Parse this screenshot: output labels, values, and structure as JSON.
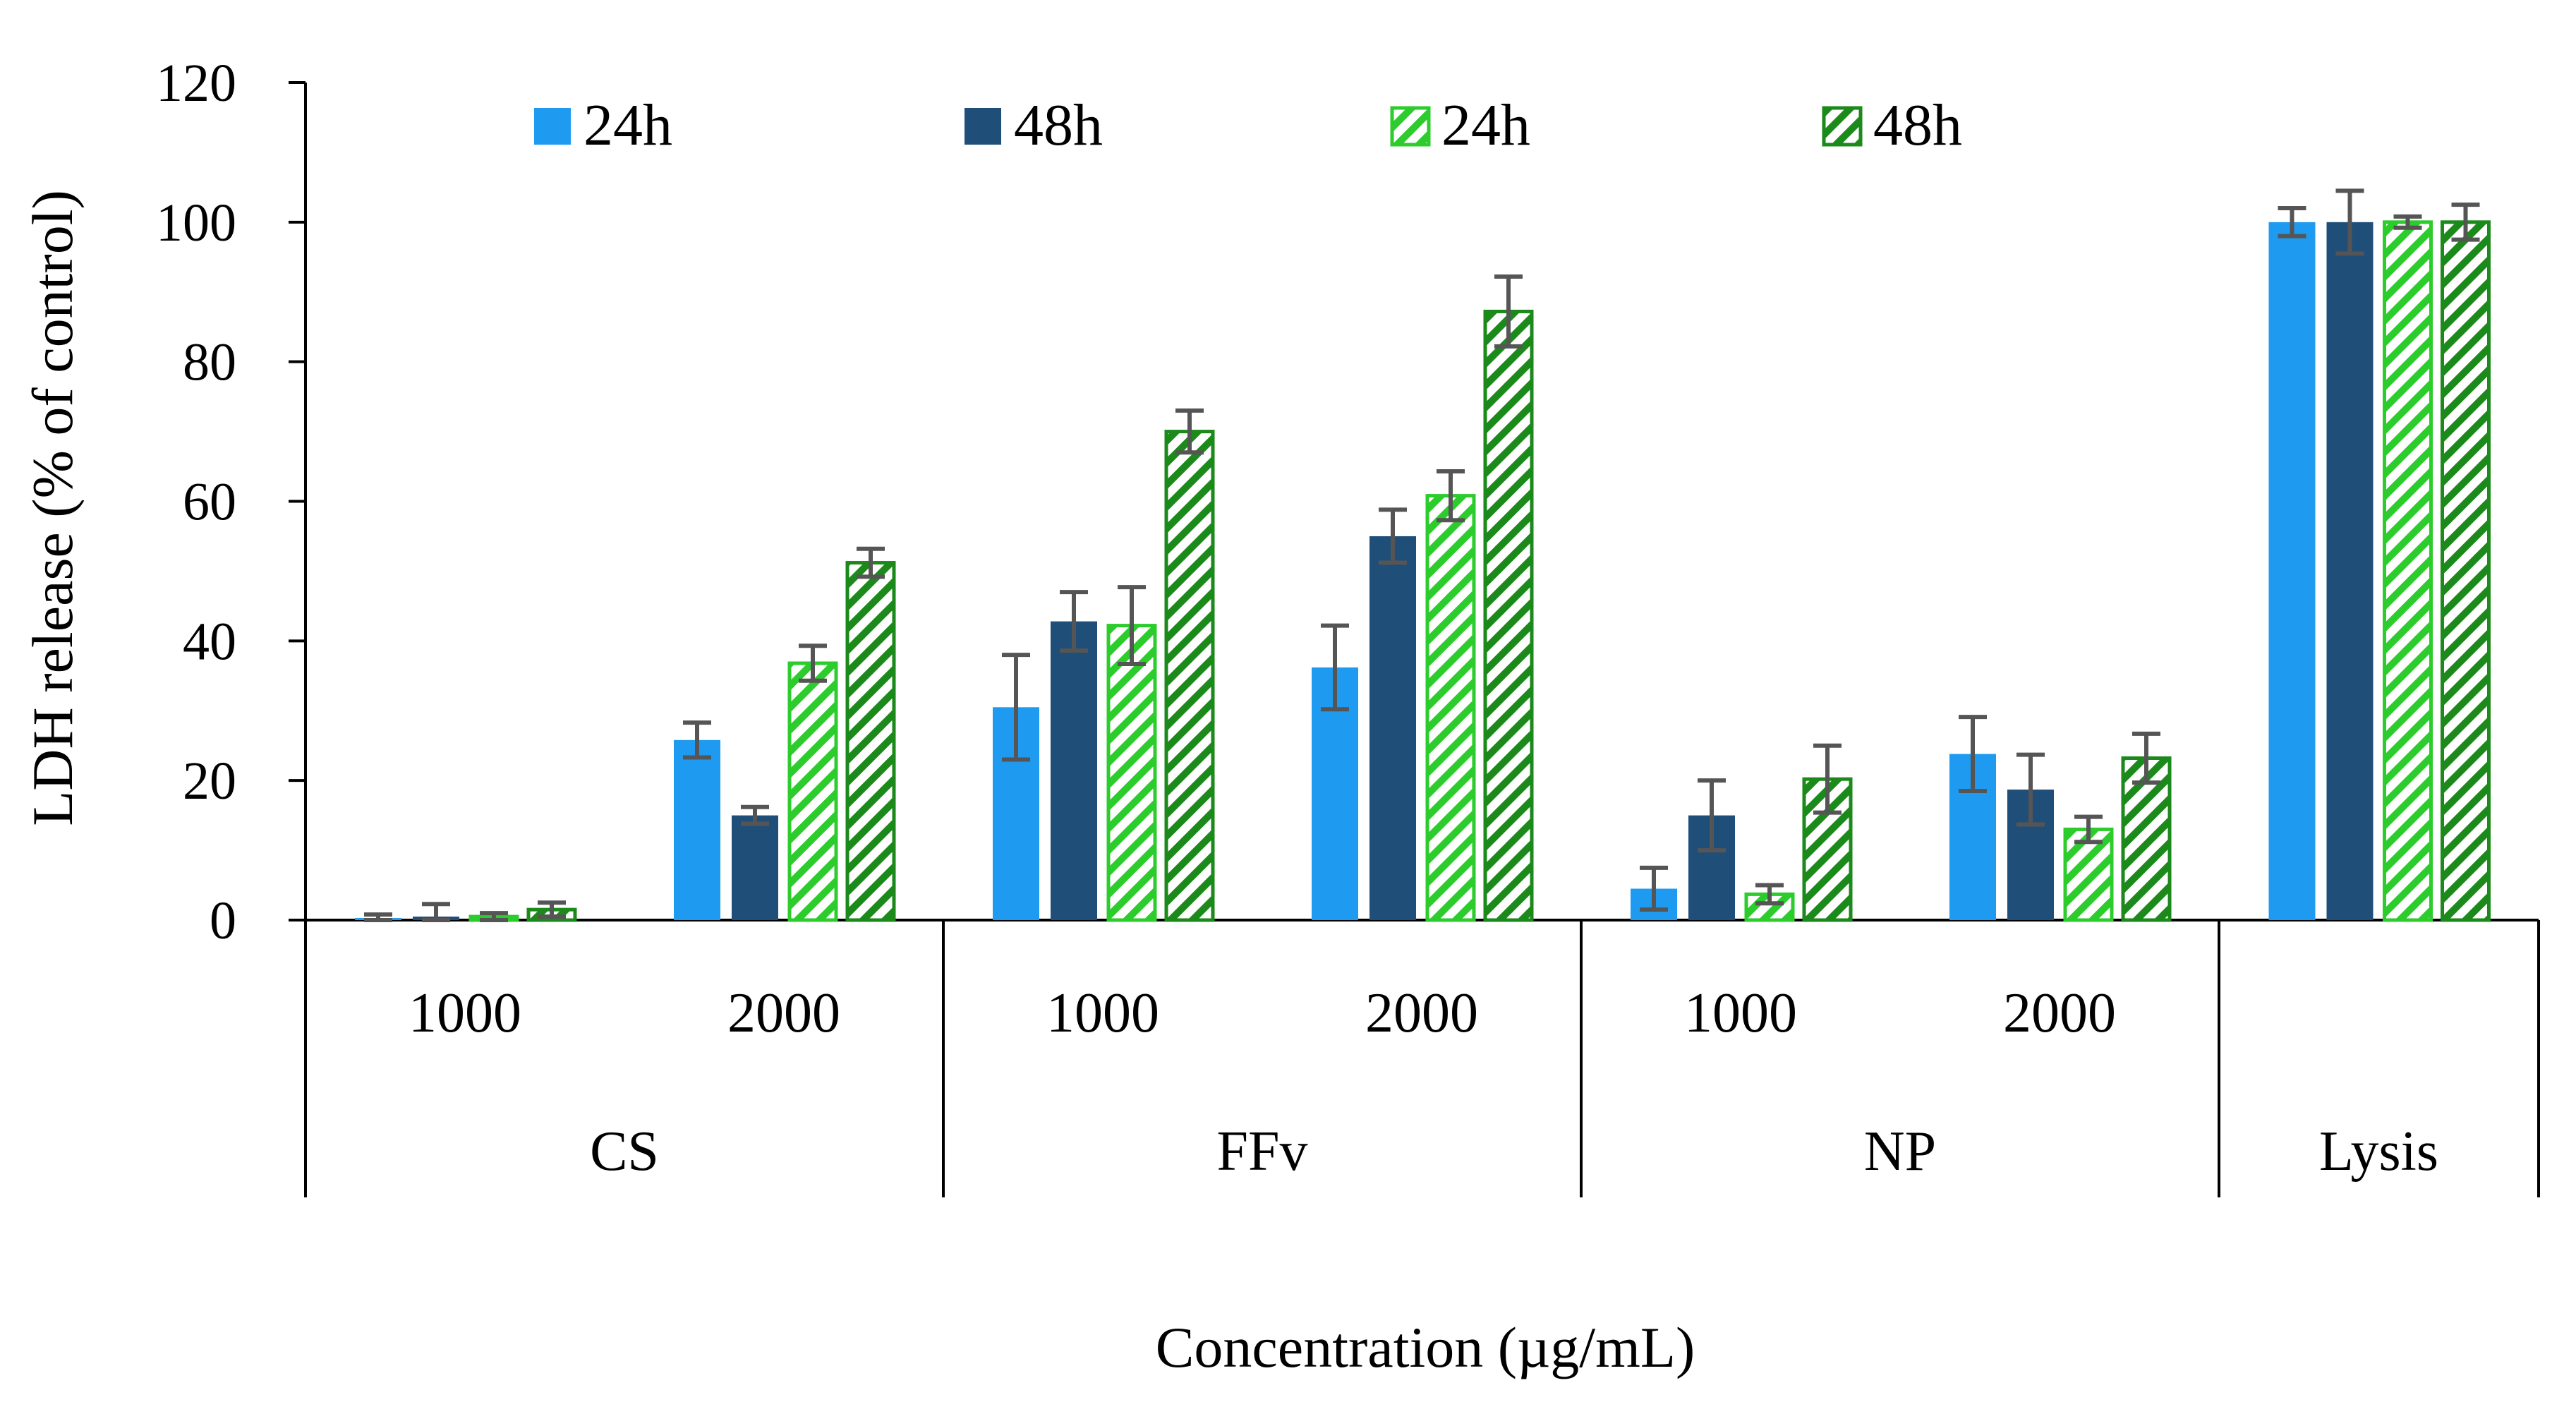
{
  "chart_data": {
    "type": "bar",
    "ylabel": "LDH release (% of control)",
    "xlabel": "Concentration (µg/mL)",
    "ylim": [
      0,
      120
    ],
    "yticks": [
      0,
      20,
      40,
      60,
      80,
      100,
      120
    ],
    "legend_position": "top",
    "groups": [
      {
        "label": "CS",
        "subgroups": [
          {
            "label": "1000",
            "values": [
              0.3,
              0.5,
              0.5,
              1.5
            ],
            "errors": [
              0.5,
              1.8,
              0.5,
              1.0
            ]
          },
          {
            "label": "2000",
            "values": [
              25.8,
              15.0,
              36.8,
              51.2
            ],
            "errors": [
              2.5,
              1.2,
              2.5,
              2.0
            ]
          }
        ]
      },
      {
        "label": "FFv",
        "subgroups": [
          {
            "label": "1000",
            "values": [
              30.5,
              42.8,
              42.2,
              70.0
            ],
            "errors": [
              7.5,
              4.2,
              5.5,
              3.0
            ]
          },
          {
            "label": "2000",
            "values": [
              36.2,
              55.0,
              60.8,
              87.2
            ],
            "errors": [
              6.0,
              3.8,
              3.5,
              5.0
            ]
          }
        ]
      },
      {
        "label": "NP",
        "subgroups": [
          {
            "label": "1000",
            "values": [
              4.5,
              15.0,
              3.7,
              20.2
            ],
            "errors": [
              3.0,
              5.0,
              1.3,
              4.8
            ]
          },
          {
            "label": "2000",
            "values": [
              23.8,
              18.7,
              13.0,
              23.2
            ],
            "errors": [
              5.3,
              5.0,
              1.8,
              3.5
            ]
          }
        ]
      },
      {
        "label": "Lysis",
        "subgroups": [
          {
            "label": "",
            "values": [
              100,
              100,
              100,
              100
            ],
            "errors": [
              2.0,
              4.5,
              0.8,
              2.5
            ]
          }
        ]
      }
    ],
    "series": [
      {
        "name": "24h",
        "style": "solid",
        "color": "#1E9BF0"
      },
      {
        "name": "48h",
        "style": "solid",
        "color": "#1F4E79"
      },
      {
        "name": "24h",
        "style": "hatched",
        "color": "#2DCC2D"
      },
      {
        "name": "48h",
        "style": "hatched",
        "color": "#1B8A1B"
      }
    ],
    "error_bar_color": "#555555"
  }
}
